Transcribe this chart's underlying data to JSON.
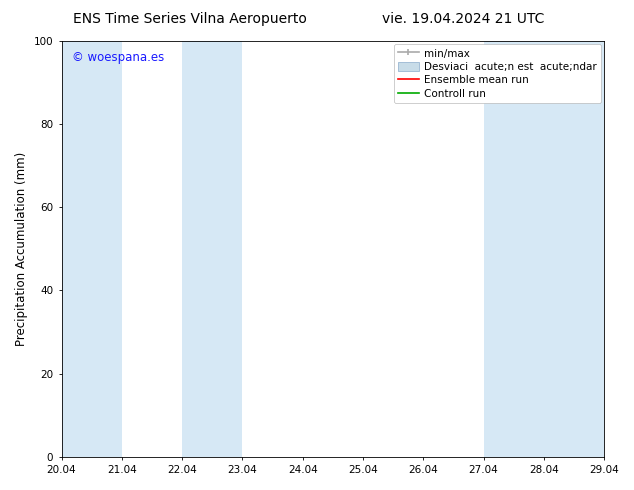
{
  "title_left": "ENS Time Series Vilna Aeropuerto",
  "title_right": "vie. 19.04.2024 21 UTC",
  "ylabel": "Precipitation Accumulation (mm)",
  "xlim": [
    0,
    9
  ],
  "ylim": [
    0,
    100
  ],
  "yticks": [
    0,
    20,
    40,
    60,
    80,
    100
  ],
  "xtick_labels": [
    "20.04",
    "21.04",
    "22.04",
    "23.04",
    "24.04",
    "25.04",
    "26.04",
    "27.04",
    "28.04",
    "29.04"
  ],
  "watermark": "© woespana.es",
  "watermark_color": "#1a1aff",
  "bg_color": "#ffffff",
  "band_color": "#d6e8f5",
  "band_positions": [
    [
      0,
      1
    ],
    [
      2,
      3
    ],
    [
      7,
      8
    ],
    [
      8,
      9
    ]
  ],
  "legend_labels": [
    "min/max",
    "Desviaci  acute;n est  acute;ndar",
    "Ensemble mean run",
    "Controll run"
  ],
  "legend_colors": [
    "#aaaaaa",
    "#c8dce8",
    "#ff0000",
    "#00aa00"
  ],
  "title_fontsize": 10,
  "tick_fontsize": 7.5,
  "ylabel_fontsize": 8.5,
  "watermark_fontsize": 8.5,
  "legend_fontsize": 7.5
}
